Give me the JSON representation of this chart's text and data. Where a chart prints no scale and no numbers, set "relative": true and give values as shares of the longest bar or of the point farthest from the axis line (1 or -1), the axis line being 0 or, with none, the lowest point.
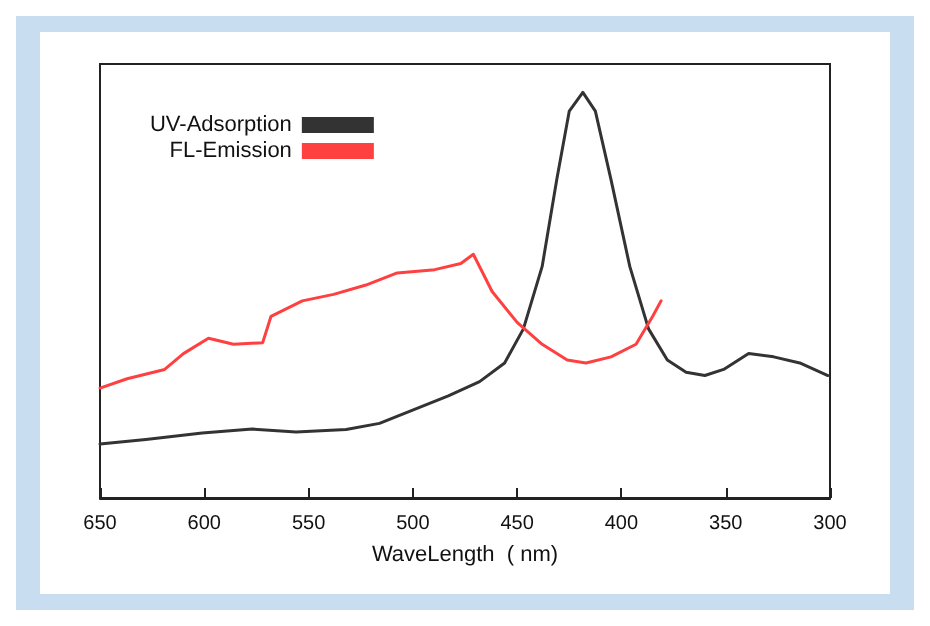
{
  "chart_data": {
    "type": "line",
    "relative": true,
    "xlabel": "WaveLength  ( nm)",
    "xlim": [
      650,
      300
    ],
    "xticks": [
      650,
      600,
      550,
      500,
      450,
      400,
      350,
      300
    ],
    "legend": "top left",
    "grid": false,
    "marker": "none",
    "line_style": "solid",
    "series": [
      {
        "name": "UV-Adsorption",
        "color": "#333333",
        "x": [
          650,
          628,
          601,
          577,
          556,
          532,
          516,
          501,
          483,
          468,
          456,
          447,
          438,
          431,
          425,
          418.5,
          412.5,
          405,
          396,
          387,
          378,
          369,
          360,
          351,
          339,
          327,
          314.5,
          301
        ],
        "values": [
          0.133,
          0.144,
          0.16,
          0.17,
          0.163,
          0.169,
          0.184,
          0.215,
          0.252,
          0.287,
          0.333,
          0.417,
          0.571,
          0.785,
          0.954,
          1.0,
          0.954,
          0.785,
          0.571,
          0.417,
          0.34,
          0.31,
          0.302,
          0.317,
          0.356,
          0.348,
          0.333,
          0.302
        ]
      },
      {
        "name": "FL-Emission",
        "color": "#ff4040",
        "x": [
          650,
          637,
          619,
          610,
          598,
          586,
          572,
          568,
          553,
          538,
          522.5,
          507.5,
          489.5,
          477,
          471,
          462,
          450,
          438,
          426,
          417,
          405,
          393,
          385,
          381
        ],
        "values": [
          0.271,
          0.294,
          0.317,
          0.356,
          0.394,
          0.379,
          0.383,
          0.448,
          0.486,
          0.502,
          0.525,
          0.555,
          0.563,
          0.578,
          0.601,
          0.509,
          0.433,
          0.379,
          0.34,
          0.333,
          0.348,
          0.379,
          0.448,
          0.486
        ]
      }
    ]
  }
}
